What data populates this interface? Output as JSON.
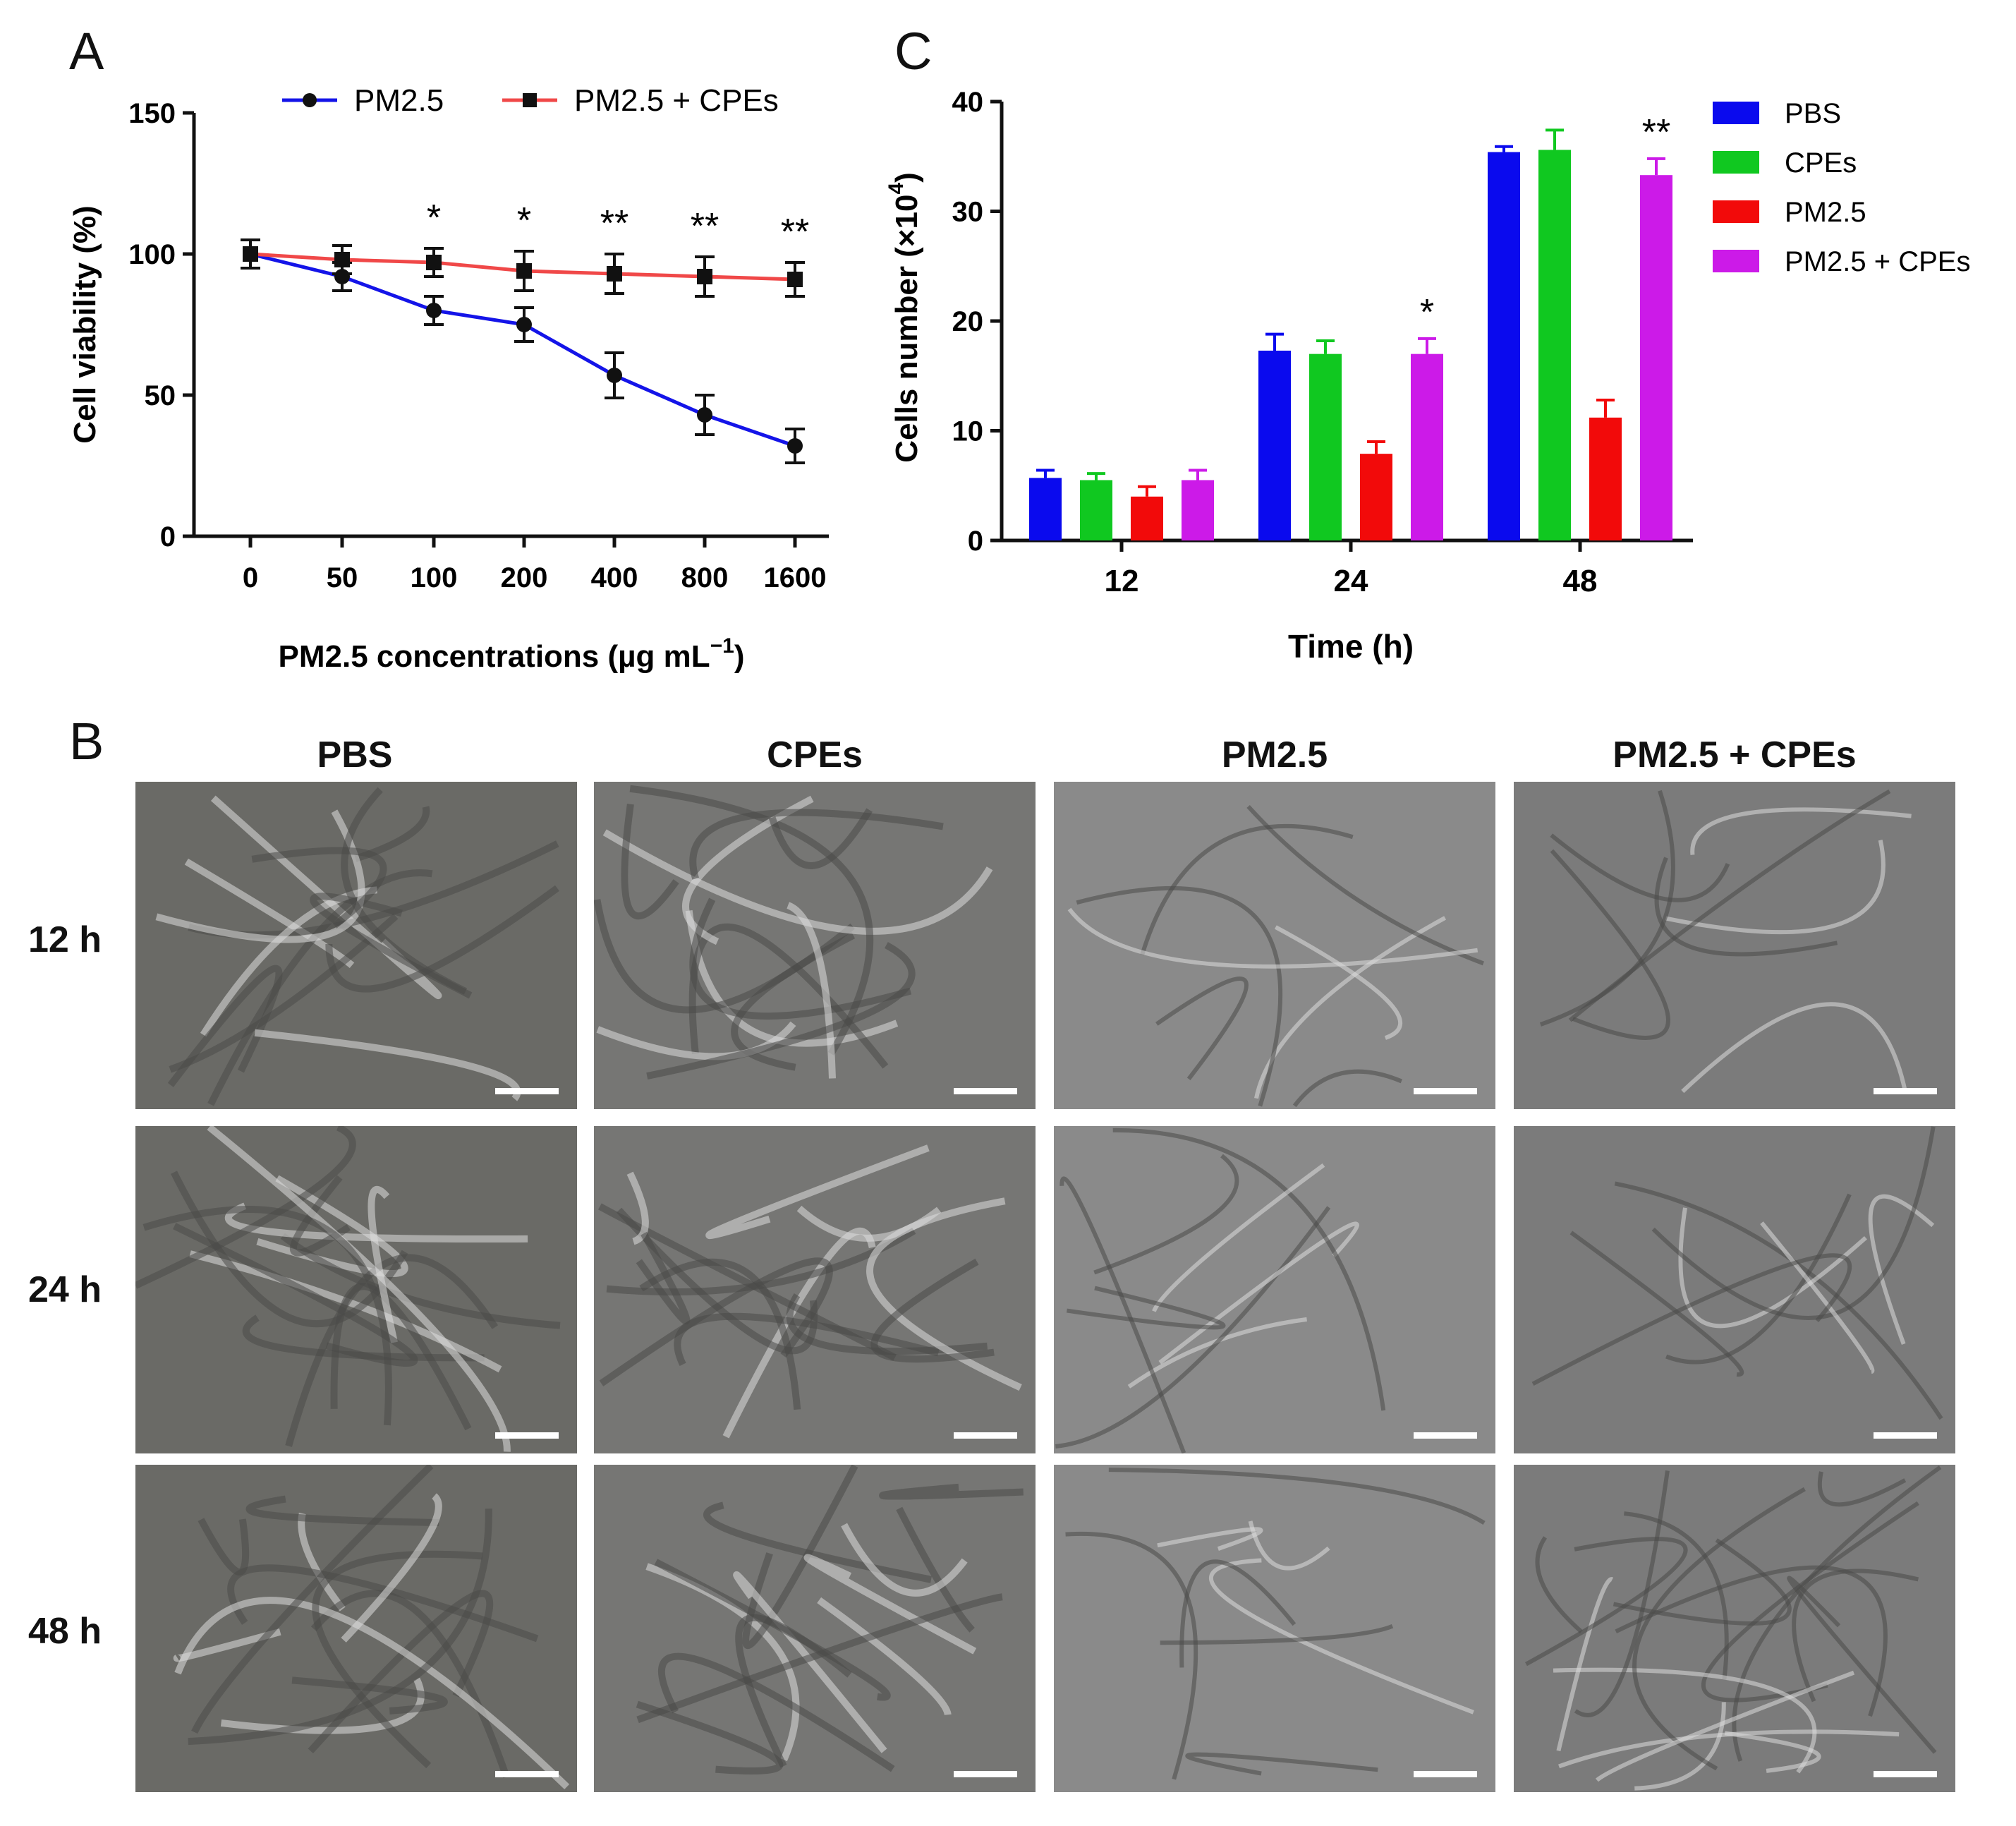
{
  "panel_labels": {
    "a": "A",
    "b": "B",
    "c": "C"
  },
  "chart_data": [
    {
      "panel": "A",
      "type": "line",
      "title": "",
      "xlabel": "PM2.5 concentrations (µg mL",
      "xlabel_sup": "−1",
      "xlabel_end": ")",
      "ylabel": "Cell viability (%)",
      "ylim": [
        0,
        150
      ],
      "yticks": [
        "0",
        "50",
        "100",
        "150"
      ],
      "categories": [
        "0",
        "50",
        "100",
        "200",
        "400",
        "800",
        "1600"
      ],
      "series": [
        {
          "name": "PM2.5",
          "color": "#1414e8",
          "marker": "circle",
          "values": [
            100,
            92,
            80,
            75,
            57,
            43,
            32
          ],
          "errors": [
            5,
            5,
            5,
            6,
            8,
            7,
            6
          ]
        },
        {
          "name": "PM2.5 + CPEs",
          "color": "#f04848",
          "marker": "square",
          "values": [
            100,
            98,
            97,
            94,
            93,
            92,
            91
          ],
          "errors": [
            5,
            5,
            5,
            7,
            7,
            7,
            6
          ]
        }
      ],
      "annotations": [
        "",
        "",
        "*",
        "*",
        "**",
        "**",
        "**"
      ],
      "legend_position": "top"
    },
    {
      "panel": "C",
      "type": "bar",
      "title": "",
      "xlabel": "Time (h)",
      "ylabel": "Cells number (×10",
      "ylabel_sup": "4",
      "ylabel_end": ")",
      "ylim": [
        0,
        40
      ],
      "yticks": [
        "0",
        "10",
        "20",
        "30",
        "40"
      ],
      "categories": [
        "12",
        "24",
        "48"
      ],
      "series": [
        {
          "name": "PBS",
          "color": "#0a0aee",
          "values": [
            5.7,
            17.3,
            35.4
          ],
          "errors": [
            0.7,
            1.5,
            0.5
          ]
        },
        {
          "name": "CPEs",
          "color": "#10c820",
          "values": [
            5.5,
            17.0,
            35.6
          ],
          "errors": [
            0.6,
            1.2,
            1.8
          ]
        },
        {
          "name": "PM2.5",
          "color": "#f20a0a",
          "values": [
            4.0,
            7.9,
            11.2
          ],
          "errors": [
            0.9,
            1.1,
            1.6
          ]
        },
        {
          "name": "PM2.5 + CPEs",
          "color": "#cc1ae8",
          "values": [
            5.5,
            17.0,
            33.3
          ],
          "errors": [
            0.9,
            1.4,
            1.5
          ]
        }
      ],
      "annotations": [
        "",
        "*",
        "**"
      ],
      "legend_position": "right"
    }
  ],
  "micrographs": {
    "columns": [
      "PBS",
      "CPEs",
      "PM2.5",
      "PM2.5 + CPEs"
    ],
    "rows": [
      "12 h",
      "24 h",
      "48 h"
    ]
  }
}
